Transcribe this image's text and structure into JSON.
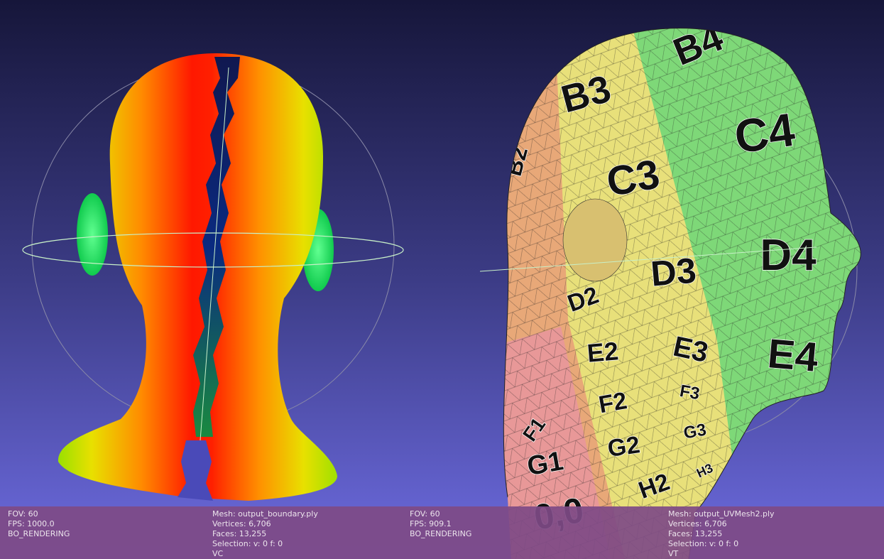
{
  "viewports": [
    {
      "info_left": [
        "FOV: 60",
        "FPS:  1000.0",
        "BO_RENDERING"
      ],
      "info_right": [
        "Mesh: output_boundary.ply",
        "Vertices: 6,706",
        "Faces: 13,255",
        "Selection: v: 0 f: 0",
        "VC"
      ]
    },
    {
      "info_left": [
        "FOV: 60",
        "FPS:   909.1",
        "BO_RENDERING"
      ],
      "info_right": [
        "Mesh: output_UVMesh2.ply",
        "Vertices: 6,706",
        "Faces: 13,255",
        "Selection: v: 0 f: 0",
        "VT"
      ]
    }
  ],
  "texture_labels": [
    "B4",
    "B3",
    "B2",
    "C4",
    "C3",
    "D4",
    "D3",
    "D2",
    "E4",
    "E3",
    "E2",
    "F3",
    "F2",
    "F1",
    "G3",
    "G2",
    "G1",
    "H3",
    "H2",
    "0,0"
  ]
}
